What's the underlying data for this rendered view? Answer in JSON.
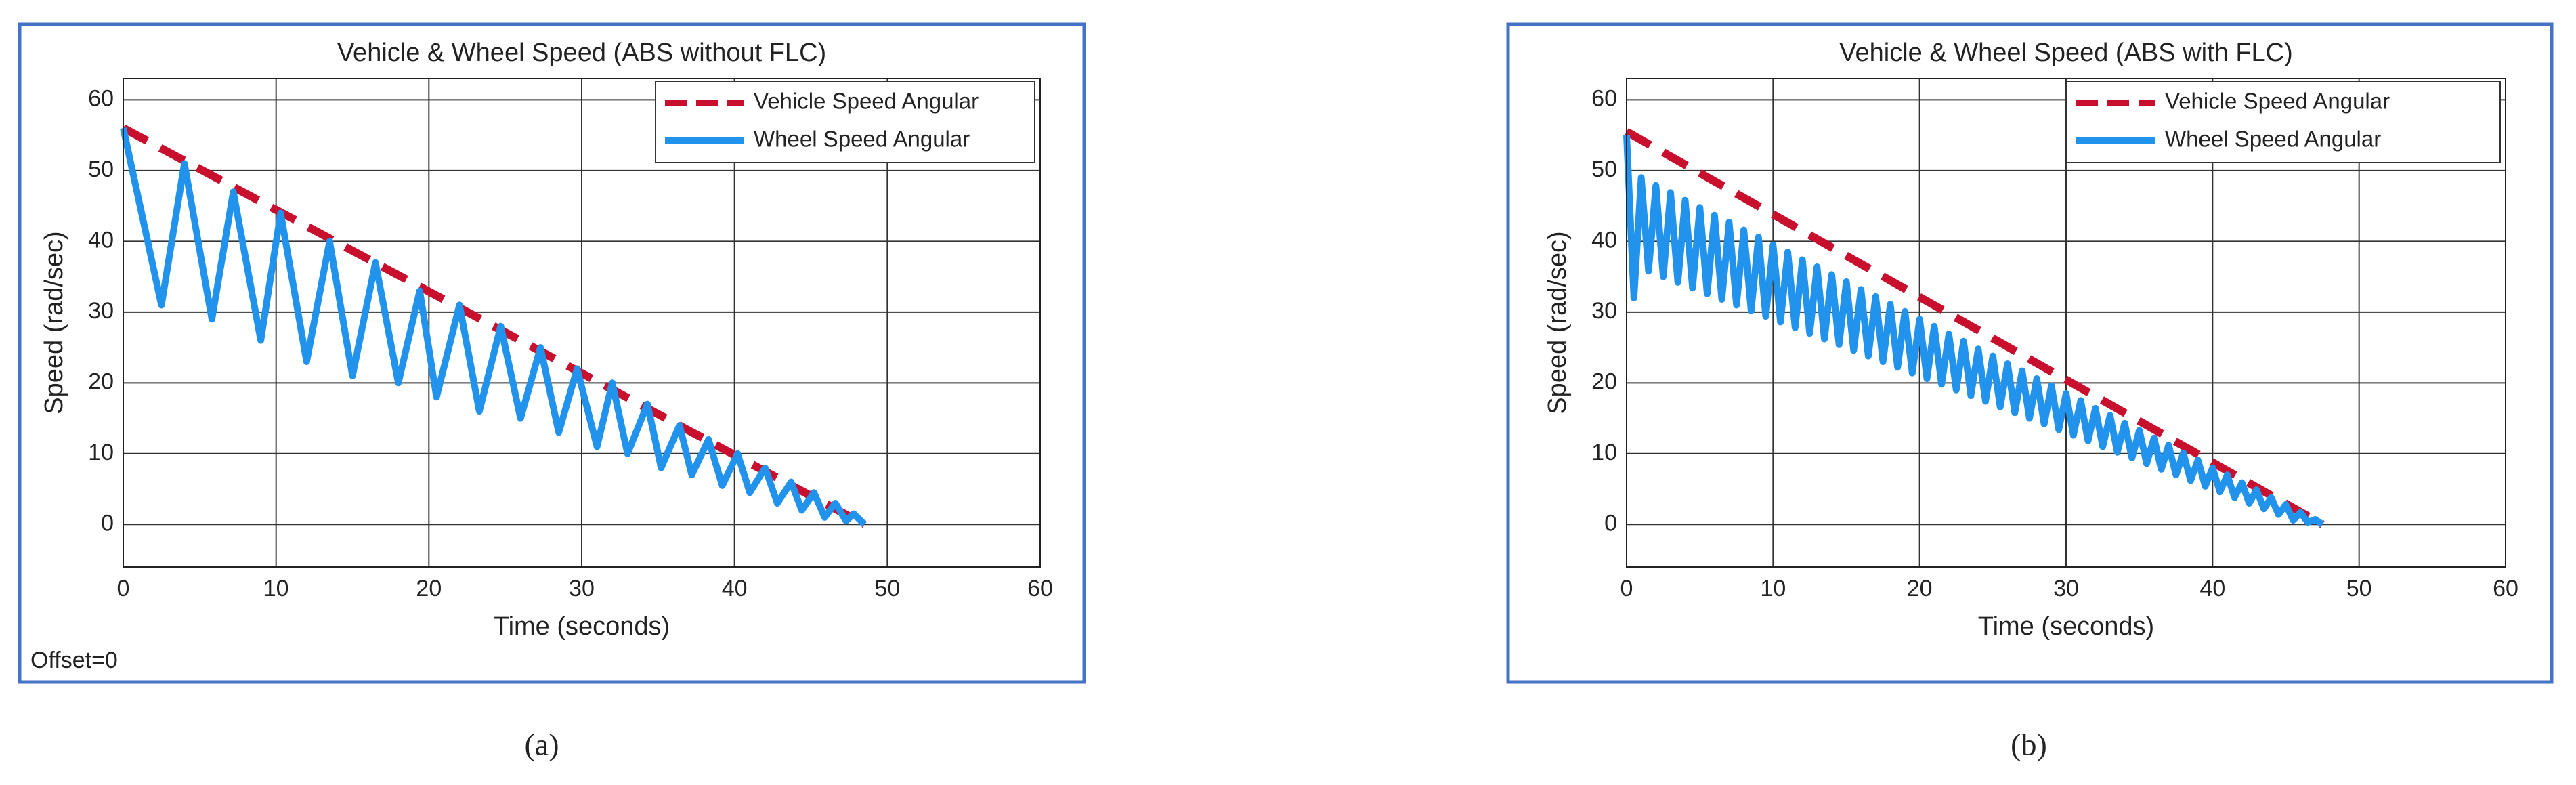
{
  "chart_data": [
    {
      "type": "line",
      "panel_label": "(a)",
      "title": "Vehicle & Wheel Speed (ABS without FLC)",
      "xlabel": "Time (seconds)",
      "ylabel": "Speed (rad/sec)",
      "annotation": "Offset=0",
      "xlim": [
        0,
        60
      ],
      "ylim": [
        -6,
        63
      ],
      "xticks": [
        0,
        10,
        20,
        30,
        40,
        50,
        60
      ],
      "yticks": [
        0,
        10,
        20,
        30,
        40,
        50,
        60
      ],
      "grid": true,
      "legend": "upper right",
      "series": [
        {
          "name": "Vehicle Speed Angular",
          "color": "#c8102e",
          "dashed": true,
          "x": [
            0,
            48.5
          ],
          "values": [
            56,
            0
          ]
        },
        {
          "name": "Wheel Speed Angular",
          "color": "#2193ec",
          "dashed": false,
          "x": [
            0,
            2.5,
            4,
            5.8,
            7.2,
            9,
            10.3,
            12,
            13.5,
            15,
            16.5,
            18,
            19.4,
            20.5,
            22,
            23.3,
            24.7,
            26,
            27.3,
            28.5,
            29.7,
            31,
            32,
            33,
            34.3,
            35.2,
            36.4,
            37.2,
            38.3,
            39.2,
            40.2,
            41,
            42,
            42.8,
            43.7,
            44.4,
            45.2,
            45.9,
            46.6,
            47.3,
            47.8,
            48.5
          ],
          "values": [
            56,
            31,
            51,
            29,
            47,
            26,
            44,
            23,
            40,
            21,
            37,
            20,
            33,
            18,
            31,
            16,
            28,
            15,
            25,
            13,
            22,
            11,
            20,
            10,
            17,
            8,
            14,
            7,
            12,
            5.5,
            10,
            4.5,
            8,
            3,
            6,
            2,
            4.5,
            1,
            3,
            0.5,
            1.5,
            0
          ]
        }
      ]
    },
    {
      "type": "line",
      "panel_label": "(b)",
      "title": "Vehicle & Wheel Speed (ABS with FLC)",
      "xlabel": "Time (seconds)",
      "ylabel": "Speed (rad/sec)",
      "xlim": [
        0,
        60
      ],
      "ylim": [
        -6,
        63
      ],
      "xticks": [
        0,
        10,
        20,
        30,
        40,
        50,
        60
      ],
      "yticks": [
        0,
        10,
        20,
        30,
        40,
        50,
        60
      ],
      "grid": true,
      "legend": "upper right",
      "series": [
        {
          "name": "Vehicle Speed Angular",
          "color": "#c8102e",
          "dashed": true,
          "x": [
            0,
            47.5
          ],
          "values": [
            55.5,
            0
          ]
        },
        {
          "name": "Wheel Speed Angular",
          "color": "#2193ec",
          "dashed": false,
          "x": [
            0,
            0.5,
            1,
            1.5,
            2,
            2.5,
            3,
            3.5,
            4,
            4.5,
            5,
            5.5,
            6,
            6.5,
            7,
            7.5,
            8,
            8.5,
            9,
            9.5,
            10,
            10.5,
            11,
            11.5,
            12,
            12.5,
            13,
            13.5,
            14,
            14.5,
            15,
            15.5,
            16,
            16.5,
            17,
            17.5,
            18,
            18.5,
            19,
            19.5,
            20,
            20.5,
            21,
            21.5,
            22,
            22.5,
            23,
            23.5,
            24,
            24.5,
            25,
            25.5,
            26,
            26.5,
            27,
            27.5,
            28,
            28.5,
            29,
            29.5,
            30,
            30.5,
            31,
            31.5,
            32,
            32.5,
            33,
            33.5,
            34,
            34.5,
            35,
            35.5,
            36,
            36.5,
            37,
            37.5,
            38,
            38.5,
            39,
            39.5,
            40,
            40.5,
            41,
            41.5,
            42,
            42.5,
            43,
            43.5,
            44,
            44.5,
            45,
            45.5,
            46,
            46.5,
            47,
            47.5
          ],
          "values": [
            55,
            32,
            49,
            35.8,
            47.9,
            35,
            46.9,
            34.2,
            45.8,
            33.4,
            44.8,
            32.6,
            43.7,
            31.8,
            42.7,
            31,
            41.6,
            30.2,
            40.6,
            29.4,
            39.5,
            28.6,
            38.5,
            27.8,
            37.4,
            27,
            36.4,
            26.2,
            35.3,
            25.4,
            34.3,
            24.6,
            33.2,
            23.8,
            32.2,
            23,
            31.1,
            22.2,
            30.1,
            21.4,
            29,
            20.6,
            28,
            19.8,
            26.9,
            19,
            25.9,
            18.2,
            24.8,
            17.4,
            23.8,
            16.6,
            22.7,
            15.8,
            21.7,
            15,
            20.6,
            14.2,
            19.6,
            13.4,
            18.5,
            12.6,
            17.5,
            11.8,
            16.4,
            11,
            15.4,
            10.2,
            14.3,
            9.4,
            13.3,
            8.6,
            12.2,
            7.8,
            11.2,
            7,
            10.1,
            6.2,
            9.1,
            5.4,
            8,
            4.6,
            7,
            3.8,
            5.9,
            3,
            4.9,
            2.2,
            3.8,
            1.4,
            2.8,
            0.6,
            1.7,
            0.3,
            0.7,
            0
          ]
        }
      ]
    }
  ]
}
